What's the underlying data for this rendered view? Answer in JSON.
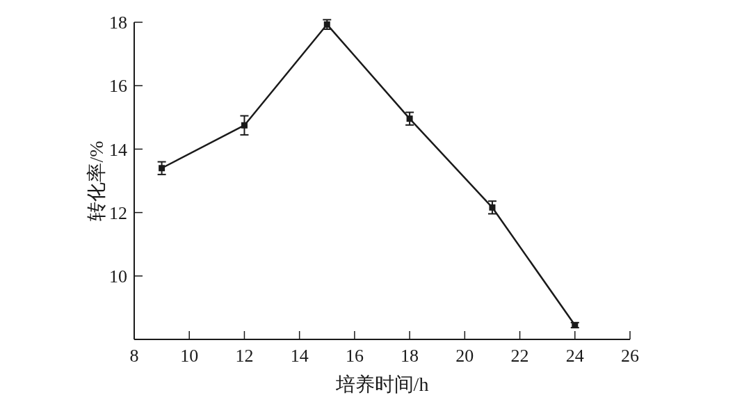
{
  "chart_data": {
    "type": "line",
    "xlabel": "培养时间/h",
    "ylabel": "转化率/%",
    "x": [
      9,
      12,
      15,
      18,
      21,
      24
    ],
    "series": [
      {
        "color": "#1a1a1a",
        "values": [
          13.4,
          14.75,
          17.93,
          14.96,
          12.16,
          8.45
        ],
        "errors": [
          0.2,
          0.3,
          0.15,
          0.2,
          0.2,
          0.08
        ]
      }
    ],
    "xlim": [
      8,
      26
    ],
    "xticks": [
      8,
      10,
      12,
      14,
      16,
      18,
      20,
      22,
      24,
      26
    ],
    "ylim": [
      8,
      18
    ],
    "yticks": [
      10,
      12,
      14,
      16,
      18
    ],
    "marker": "square",
    "grid": false
  }
}
